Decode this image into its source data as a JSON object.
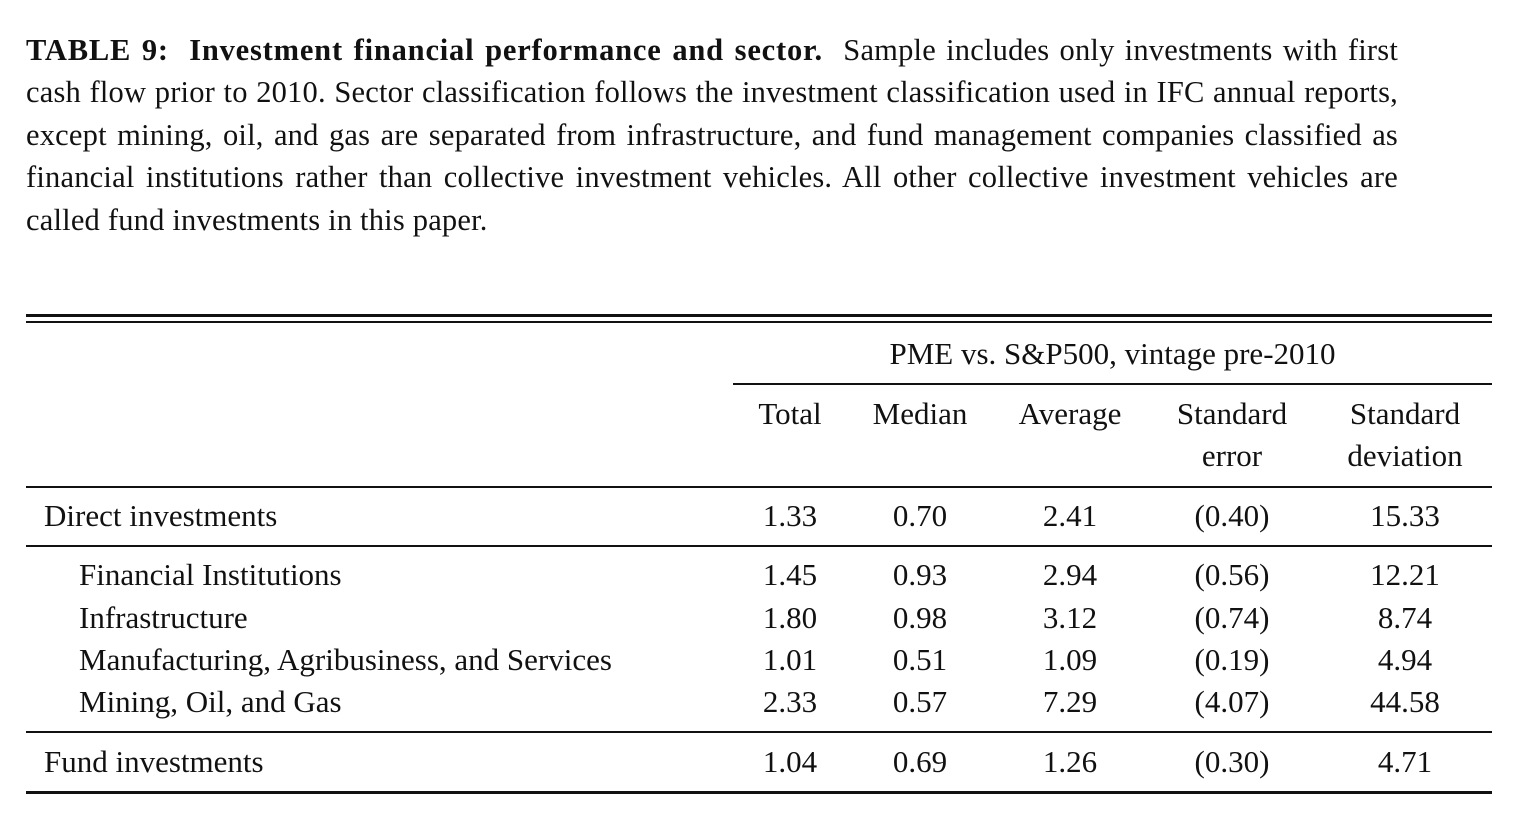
{
  "caption": {
    "label": "TABLE 9:",
    "title": "Investment financial performance and sector.",
    "text": "Sample includes only investments with first cash flow prior to 2010. Sector classification follows the investment classification used in IFC annual reports, except mining, oil, and gas are separated from infrastructure, and fund management companies classified as financial institutions rather than collective investment vehicles. All other collective investment vehicles are called fund investments in this paper."
  },
  "table": {
    "group_header": "PME vs. S&P500, vintage pre-2010",
    "columns": [
      {
        "line1": "Total",
        "line2": ""
      },
      {
        "line1": "Median",
        "line2": ""
      },
      {
        "line1": "Average",
        "line2": ""
      },
      {
        "line1": "Standard",
        "line2": "error"
      },
      {
        "line1": "Standard",
        "line2": "deviation"
      }
    ],
    "rows": {
      "direct": {
        "label": "Direct investments",
        "values": [
          "1.33",
          "0.70",
          "2.41",
          "(0.40)",
          "15.33"
        ]
      },
      "financial": {
        "label": "Financial Institutions",
        "values": [
          "1.45",
          "0.93",
          "2.94",
          "(0.56)",
          "12.21"
        ]
      },
      "infrastructure": {
        "label": "Infrastructure",
        "values": [
          "1.80",
          "0.98",
          "3.12",
          "(0.74)",
          "8.74"
        ]
      },
      "manufacturing": {
        "label": "Manufacturing, Agribusiness, and Services",
        "values": [
          "1.01",
          "0.51",
          "1.09",
          "(0.19)",
          "4.94"
        ]
      },
      "mining": {
        "label": "Mining, Oil, and Gas",
        "values": [
          "2.33",
          "0.57",
          "7.29",
          "(4.07)",
          "44.58"
        ]
      },
      "fund": {
        "label": "Fund investments",
        "values": [
          "1.04",
          "0.69",
          "1.26",
          "(0.30)",
          "4.71"
        ]
      }
    }
  }
}
